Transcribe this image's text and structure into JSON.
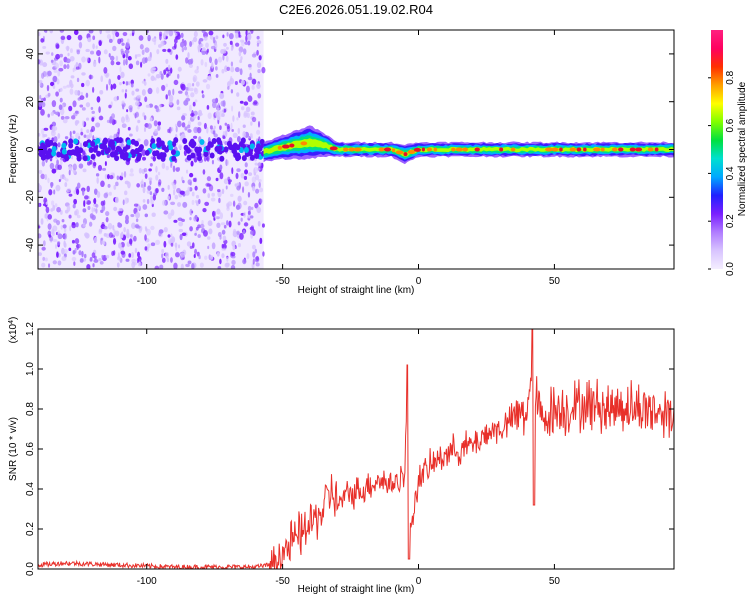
{
  "title": "C2E6.2026.051.19.02.R04",
  "colors": {
    "snr_line": "#e8302a",
    "spectro_strong": "#7a1fff",
    "spectro_weak": "#d8c4ff",
    "band_core": "#e8102a"
  },
  "chart_data": [
    {
      "type": "heatmap",
      "name": "spectrogram",
      "xlabel": "Height of straight line (km)",
      "ylabel": "Frequency (Hz)",
      "xlim": [
        -140,
        94
      ],
      "ylim": [
        -50,
        50
      ],
      "xticks": [
        -100,
        -50,
        0,
        50
      ],
      "yticks": [
        -40,
        -20,
        0,
        20,
        40
      ],
      "noise_region_x": [
        -140,
        -57
      ],
      "signal_band": {
        "x": [
          -57,
          94
        ],
        "center_points": [
          [
            -57,
            -1
          ],
          [
            -50,
            1
          ],
          [
            -45,
            2
          ],
          [
            -40,
            3
          ],
          [
            -35,
            2
          ],
          [
            -30,
            0
          ],
          [
            -20,
            0
          ],
          [
            -10,
            0
          ],
          [
            -5,
            -2
          ],
          [
            0,
            0
          ],
          [
            10,
            0
          ],
          [
            30,
            0
          ],
          [
            60,
            0
          ],
          [
            94,
            0
          ]
        ],
        "half_width_hz": [
          4,
          5,
          6,
          7,
          5,
          3,
          3,
          3,
          4,
          3,
          3,
          3,
          3,
          3
        ]
      },
      "colorbar": {
        "label": "Normalized spectral amplitude",
        "range": [
          0,
          1
        ],
        "ticks": [
          0.0,
          0.2,
          0.4,
          0.6,
          0.8
        ],
        "stops": [
          "#f4eeff",
          "#d8c4ff",
          "#b07cff",
          "#7a1fff",
          "#2020ff",
          "#00a8ff",
          "#00e0d0",
          "#00e040",
          "#80ff00",
          "#ffff00",
          "#ffa000",
          "#ff3000",
          "#ff0060",
          "#ff2080"
        ]
      }
    },
    {
      "type": "line",
      "name": "snr",
      "xlabel": "Height of straight line (km)",
      "ylabel": "SNR (10 * v/v)",
      "scale_label": "(x10^4)",
      "scale_base": "(x10",
      "scale_exp": "4",
      "scale_close": ")",
      "xlim": [
        -140,
        94
      ],
      "ylim": [
        0,
        1.2
      ],
      "xticks": [
        -100,
        -50,
        0,
        50
      ],
      "yticks": [
        0.0,
        0.2,
        0.4,
        0.6,
        0.8,
        1.0,
        1.2
      ],
      "x": [
        -140,
        -130,
        -120,
        -110,
        -100,
        -90,
        -80,
        -70,
        -60,
        -55,
        -50,
        -45,
        -40,
        -35,
        -32,
        -30,
        -25,
        -20,
        -15,
        -10,
        -5,
        -4,
        -3,
        0,
        5,
        10,
        15,
        20,
        25,
        30,
        35,
        40,
        42,
        45,
        50,
        55,
        60,
        65,
        70,
        75,
        80,
        85,
        90,
        94
      ],
      "y": [
        0.02,
        0.03,
        0.025,
        0.02,
        0.015,
        0.01,
        0.01,
        0.01,
        0.01,
        0.02,
        0.08,
        0.15,
        0.22,
        0.3,
        0.4,
        0.32,
        0.38,
        0.4,
        0.45,
        0.42,
        0.48,
        1.0,
        0.2,
        0.45,
        0.52,
        0.58,
        0.6,
        0.62,
        0.68,
        0.7,
        0.75,
        0.8,
        0.95,
        0.75,
        0.8,
        0.8,
        0.82,
        0.82,
        0.8,
        0.82,
        0.8,
        0.8,
        0.78,
        0.8
      ]
    }
  ]
}
